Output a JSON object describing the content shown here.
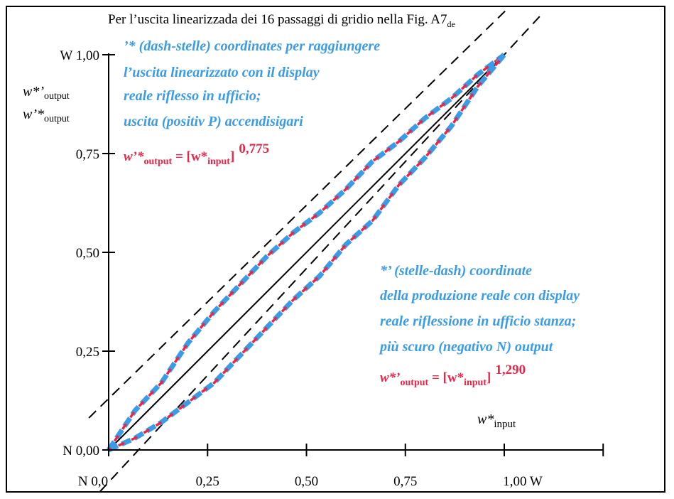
{
  "chart_data": {
    "type": "line",
    "title": "Per l’uscita linearizzada dei 16 passaggi di gridio nella Fig. A7",
    "title_sub": "de",
    "xlabel_main": "w*",
    "xlabel_sub": "input",
    "ylabel_lines": [
      {
        "main": "w*’",
        "sub": "output"
      },
      {
        "main": "w’*",
        "sub": "output"
      }
    ],
    "xlim": [
      0,
      1.25
    ],
    "ylim": [
      0,
      1.0
    ],
    "x_ticks": [
      0,
      0.25,
      0.5,
      0.75,
      1.0,
      1.25
    ],
    "x_tick_labels": [
      "N 0,0",
      "0,25",
      "0,50",
      "0,75",
      "1,00  W",
      ""
    ],
    "y_ticks": [
      0,
      0.25,
      0.5,
      0.75,
      1.0
    ],
    "y_tick_labels": [
      "N 0,00",
      "0,25",
      "0,50",
      "0,75",
      "W 1,00"
    ],
    "annotation_upper": {
      "lines": [
        "’* (dash-stelle) coordinates per raggiungere",
        "l’uscita linearizzato con il display",
        "reale riflesso in ufficio;",
        "uscita (positiv P) accendisigari"
      ],
      "formula": {
        "lhs_main": "w’*",
        "lhs_sub": "output",
        "mid": " = [w*",
        "mid_sub": "input",
        "close": "]",
        "exponent": "0,775"
      }
    },
    "annotation_lower": {
      "lines": [
        "*’ (stelle-dash) coordinate",
        "della produzione reale con display",
        "reale riflessione in ufficio stanza;",
        "più scuro (negativo N) output"
      ],
      "formula": {
        "lhs_main": "w*’",
        "lhs_sub": "output",
        "mid": " = [w*",
        "mid_sub": "input",
        "close": "]",
        "exponent": "1,290"
      }
    },
    "series": [
      {
        "kind": "reference",
        "color": "#000000",
        "style": "solid",
        "points": [
          [
            0,
            0
          ],
          [
            1,
            1
          ]
        ]
      },
      {
        "kind": "tolerance",
        "color": "#000000",
        "style": "dashed",
        "points": [
          [
            0,
            0.13
          ],
          [
            0.92,
            1.03
          ]
        ]
      },
      {
        "kind": "tolerance",
        "color": "#000000",
        "style": "dashed",
        "points": [
          [
            0.02,
            -0.06
          ],
          [
            1.0,
            1.0
          ]
        ]
      },
      {
        "kind": "curve",
        "exponent": 0.775,
        "colors": [
          "#3a9be6",
          "#e8264a"
        ],
        "points": [
          [
            0,
            0
          ],
          [
            0.0667,
            0.1
          ],
          [
            0.1333,
            0.17
          ],
          [
            0.2,
            0.27
          ],
          [
            0.2667,
            0.35
          ],
          [
            0.3333,
            0.42
          ],
          [
            0.4,
            0.49
          ],
          [
            0.4667,
            0.55
          ],
          [
            0.5333,
            0.6
          ],
          [
            0.6,
            0.66
          ],
          [
            0.6667,
            0.73
          ],
          [
            0.7333,
            0.78
          ],
          [
            0.8,
            0.84
          ],
          [
            0.8667,
            0.89
          ],
          [
            0.9333,
            0.95
          ],
          [
            1,
            1
          ]
        ]
      },
      {
        "kind": "curve",
        "exponent": 1.29,
        "colors": [
          "#3a9be6",
          "#e8264a"
        ],
        "points": [
          [
            0,
            0
          ],
          [
            0.0667,
            0.03
          ],
          [
            0.1333,
            0.07
          ],
          [
            0.2,
            0.12
          ],
          [
            0.2667,
            0.17
          ],
          [
            0.3333,
            0.24
          ],
          [
            0.4,
            0.31
          ],
          [
            0.4667,
            0.38
          ],
          [
            0.5333,
            0.44
          ],
          [
            0.6,
            0.52
          ],
          [
            0.6667,
            0.58
          ],
          [
            0.7333,
            0.67
          ],
          [
            0.8,
            0.74
          ],
          [
            0.8667,
            0.82
          ],
          [
            0.9333,
            0.92
          ],
          [
            1,
            1
          ]
        ]
      }
    ]
  }
}
